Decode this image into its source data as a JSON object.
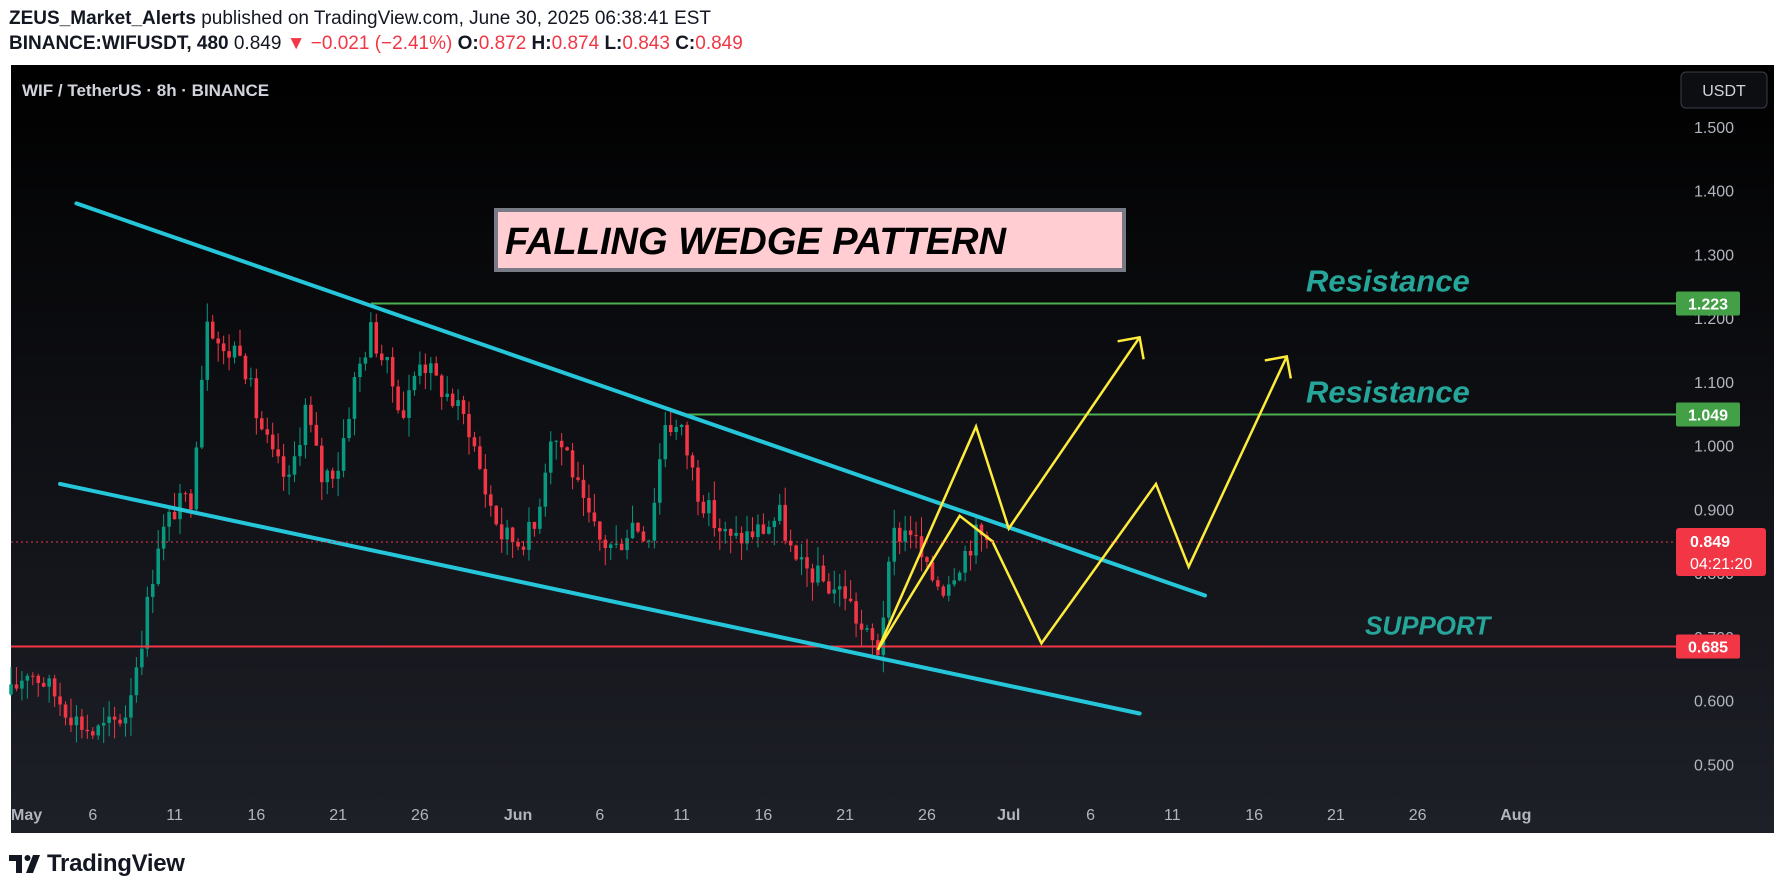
{
  "header": {
    "author": "ZEUS_Market_Alerts",
    "published": "published on TradingView.com, June 30, 2025 06:38:41 EST"
  },
  "ticker": {
    "symbol": "BINANCE:WIFUSDT, 480",
    "last": "0.849",
    "change_arrow": "▼",
    "change": "−0.021 (−2.41%)",
    "o_label": "O:",
    "o": "0.872",
    "h_label": "H:",
    "h": "0.874",
    "l_label": "L:",
    "l": "0.843",
    "c_label": "C:",
    "c": "0.849"
  },
  "footer": {
    "brand": "TradingView"
  },
  "chart_data": {
    "type": "candlestick",
    "title": "WIF / TetherUS · 8h · BINANCE",
    "currency_button": "USDT",
    "y_ticks": [
      "1.500",
      "1.400",
      "1.300",
      "1.200",
      "1.100",
      "1.000",
      "0.900",
      "0.800",
      "0.700",
      "0.600",
      "0.500"
    ],
    "ylim": [
      0.46,
      1.55
    ],
    "x_ticks": [
      {
        "label": "May",
        "date": "2025-05-01"
      },
      {
        "label": "6",
        "date": "2025-05-06"
      },
      {
        "label": "11",
        "date": "2025-05-11"
      },
      {
        "label": "16",
        "date": "2025-05-16"
      },
      {
        "label": "21",
        "date": "2025-05-21"
      },
      {
        "label": "26",
        "date": "2025-05-26"
      },
      {
        "label": "Jun",
        "date": "2025-06-01"
      },
      {
        "label": "6",
        "date": "2025-06-06"
      },
      {
        "label": "11",
        "date": "2025-06-11"
      },
      {
        "label": "16",
        "date": "2025-06-16"
      },
      {
        "label": "21",
        "date": "2025-06-21"
      },
      {
        "label": "26",
        "date": "2025-06-26"
      },
      {
        "label": "Jul",
        "date": "2025-07-01"
      },
      {
        "label": "6",
        "date": "2025-07-06"
      },
      {
        "label": "11",
        "date": "2025-07-11"
      },
      {
        "label": "16",
        "date": "2025-07-16"
      },
      {
        "label": "21",
        "date": "2025-07-21"
      },
      {
        "label": "26",
        "date": "2025-07-26"
      },
      {
        "label": "Aug",
        "date": "2025-08-01"
      }
    ],
    "xlim": [
      "2025-05-01",
      "2025-08-10"
    ],
    "price_path": [
      [
        "2025-05-01",
        0.61
      ],
      [
        "2025-05-02",
        0.65
      ],
      [
        "2025-05-03",
        0.63
      ],
      [
        "2025-05-04",
        0.6
      ],
      [
        "2025-05-05",
        0.57
      ],
      [
        "2025-05-06",
        0.55
      ],
      [
        "2025-05-07",
        0.56
      ],
      [
        "2025-05-08",
        0.58
      ],
      [
        "2025-05-09",
        0.7
      ],
      [
        "2025-05-10",
        0.85
      ],
      [
        "2025-05-11",
        0.9
      ],
      [
        "2025-05-12",
        0.92
      ],
      [
        "2025-05-13",
        1.21
      ],
      [
        "2025-05-14",
        1.14
      ],
      [
        "2025-05-15",
        1.16
      ],
      [
        "2025-05-16",
        1.05
      ],
      [
        "2025-05-17",
        0.98
      ],
      [
        "2025-05-18",
        0.94
      ],
      [
        "2025-05-19",
        1.06
      ],
      [
        "2025-05-20",
        0.95
      ],
      [
        "2025-05-21",
        0.97
      ],
      [
        "2025-05-22",
        1.1
      ],
      [
        "2025-05-23",
        1.18
      ],
      [
        "2025-05-24",
        1.12
      ],
      [
        "2025-05-25",
        1.05
      ],
      [
        "2025-05-26",
        1.14
      ],
      [
        "2025-05-27",
        1.1
      ],
      [
        "2025-05-28",
        1.07
      ],
      [
        "2025-05-29",
        1.03
      ],
      [
        "2025-05-30",
        0.93
      ],
      [
        "2025-05-31",
        0.86
      ],
      [
        "2025-06-01",
        0.85
      ],
      [
        "2025-06-02",
        0.87
      ],
      [
        "2025-06-03",
        1.02
      ],
      [
        "2025-06-04",
        0.99
      ],
      [
        "2025-06-05",
        0.9
      ],
      [
        "2025-06-06",
        0.85
      ],
      [
        "2025-06-07",
        0.84
      ],
      [
        "2025-06-08",
        0.88
      ],
      [
        "2025-06-09",
        0.86
      ],
      [
        "2025-06-10",
        1.04
      ],
      [
        "2025-06-11",
        1.02
      ],
      [
        "2025-06-12",
        0.93
      ],
      [
        "2025-06-13",
        0.88
      ],
      [
        "2025-06-14",
        0.85
      ],
      [
        "2025-06-15",
        0.86
      ],
      [
        "2025-06-16",
        0.87
      ],
      [
        "2025-06-17",
        0.89
      ],
      [
        "2025-06-18",
        0.81
      ],
      [
        "2025-06-19",
        0.8
      ],
      [
        "2025-06-20",
        0.78
      ],
      [
        "2025-06-21",
        0.77
      ],
      [
        "2025-06-22",
        0.71
      ],
      [
        "2025-06-23",
        0.68
      ],
      [
        "2025-06-24",
        0.86
      ],
      [
        "2025-06-25",
        0.87
      ],
      [
        "2025-06-26",
        0.8
      ],
      [
        "2025-06-27",
        0.78
      ],
      [
        "2025-06-28",
        0.82
      ],
      [
        "2025-06-29",
        0.86
      ],
      [
        "2025-06-30",
        0.849
      ]
    ],
    "wedge_upper": [
      [
        "2025-05-05",
        1.38
      ],
      [
        "2025-07-13",
        0.765
      ]
    ],
    "wedge_lower": [
      [
        "2025-05-04",
        0.94
      ],
      [
        "2025-07-09",
        0.58
      ]
    ],
    "horizontal_levels": [
      {
        "value": 1.223,
        "label": "1.223",
        "text": "Resistance",
        "color": "#4caf50",
        "from": "2025-05-23"
      },
      {
        "value": 1.049,
        "label": "1.049",
        "text": "Resistance",
        "color": "#4caf50",
        "from": "2025-06-11"
      },
      {
        "value": 0.685,
        "label": "0.685",
        "text": "SUPPORT",
        "color": "#f23645",
        "from": "2025-05-01"
      }
    ],
    "projection_a": [
      [
        "2025-06-23",
        0.68
      ],
      [
        "2025-06-28",
        0.89
      ],
      [
        "2025-06-30",
        0.85
      ],
      [
        "2025-07-03",
        0.69
      ],
      [
        "2025-07-10",
        0.94
      ],
      [
        "2025-07-12",
        0.81
      ],
      [
        "2025-07-18",
        1.14
      ]
    ],
    "projection_b": [
      [
        "2025-06-23",
        0.68
      ],
      [
        "2025-06-29",
        1.03
      ],
      [
        "2025-07-01",
        0.87
      ],
      [
        "2025-07-09",
        1.17
      ]
    ],
    "arrow_heads": [
      [
        "2025-07-09",
        1.17
      ],
      [
        "2025-07-18",
        1.14
      ]
    ],
    "last_price": {
      "value": 0.849,
      "label": "0.849",
      "countdown": "04:21:20",
      "color": "#f23645"
    },
    "annotation": {
      "text": "FALLING WEDGE PATTERN",
      "bg": "#ffcdd2"
    },
    "colors": {
      "up": "#089981",
      "down": "#f23645",
      "wedge": "#26c6da",
      "projection": "#ffeb3b",
      "resistance_text": "#26a69a"
    }
  }
}
